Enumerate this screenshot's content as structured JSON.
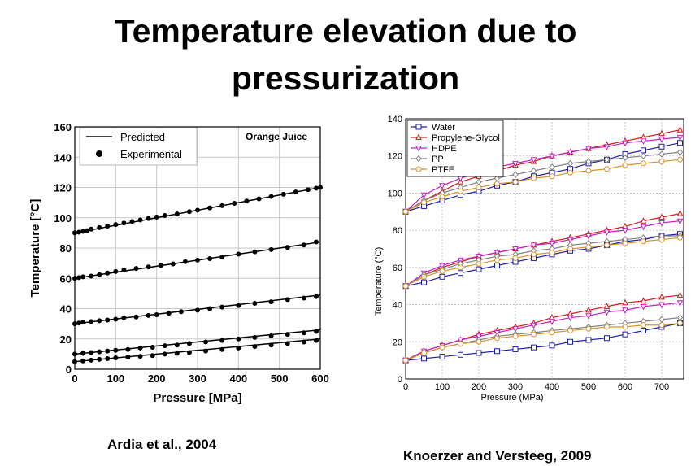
{
  "slide": {
    "title_line1": "Temperature elevation due to",
    "title_line2": "pressurization",
    "citation_left": "Ardia et al., 2004",
    "citation_right": "Knoerzer and Versteeg, 2009"
  },
  "chart_data": [
    {
      "type": "scatter",
      "title": "",
      "annotation": "Orange Juice",
      "xlabel": "Pressure [MPa]",
      "ylabel": "Temperature [°C]",
      "xlim": [
        0,
        600
      ],
      "ylim": [
        0,
        160
      ],
      "xticks": [
        0,
        100,
        200,
        300,
        400,
        500,
        600
      ],
      "yticks": [
        0,
        20,
        40,
        60,
        80,
        100,
        120,
        140,
        160
      ],
      "grid": true,
      "legend_position": "top-left",
      "legend": [
        {
          "label": "Predicted",
          "marker": "line"
        },
        {
          "label": "Experimental",
          "marker": "dot"
        }
      ],
      "color": "#000000",
      "series": [
        {
          "x": [
            0,
            600
          ],
          "predicted": [
            90,
            120
          ],
          "x_exp": [
            0,
            10,
            20,
            30,
            40,
            60,
            80,
            100,
            120,
            140,
            160,
            180,
            200,
            220,
            250,
            280,
            300,
            330,
            360,
            390,
            420,
            450,
            480,
            510,
            540,
            570,
            590,
            600
          ],
          "experimental": [
            90,
            90.5,
            91,
            91.5,
            92.5,
            93.5,
            94.5,
            95.5,
            96.5,
            97.5,
            98.5,
            99.5,
            100.5,
            101.5,
            102.5,
            104,
            105,
            106.5,
            108,
            109.5,
            111,
            112.5,
            114,
            115.5,
            117,
            118.5,
            119.5,
            120
          ]
        },
        {
          "x": [
            0,
            600
          ],
          "predicted": [
            60,
            84
          ],
          "x_exp": [
            0,
            10,
            20,
            40,
            60,
            80,
            100,
            120,
            150,
            180,
            210,
            240,
            270,
            300,
            330,
            360,
            400,
            440,
            480,
            520,
            560,
            590
          ],
          "experimental": [
            60,
            60.5,
            61,
            61.5,
            62.5,
            63.5,
            64.5,
            65.5,
            66.5,
            67.5,
            68.5,
            69.5,
            71,
            72,
            73,
            74,
            76,
            77.5,
            79,
            80.5,
            82,
            84
          ]
        },
        {
          "x": [
            0,
            600
          ],
          "predicted": [
            30,
            49
          ],
          "x_exp": [
            0,
            10,
            20,
            40,
            60,
            80,
            100,
            120,
            150,
            180,
            200,
            230,
            260,
            300,
            330,
            360,
            400,
            440,
            480,
            520,
            560,
            590
          ],
          "experimental": [
            30,
            30.5,
            31,
            31.5,
            32,
            32.5,
            33,
            34,
            34.5,
            35.5,
            36,
            37,
            38,
            39,
            40,
            41,
            42,
            43.5,
            44.5,
            46,
            47,
            48
          ]
        },
        {
          "x": [
            0,
            600
          ],
          "predicted": [
            10,
            26
          ],
          "x_exp": [
            0,
            20,
            40,
            60,
            80,
            100,
            130,
            160,
            190,
            220,
            250,
            280,
            320,
            360,
            400,
            440,
            480,
            520,
            560,
            590
          ],
          "experimental": [
            10,
            10.5,
            11,
            11.5,
            12,
            12.5,
            13,
            14,
            14.5,
            15.5,
            16,
            17,
            18,
            19,
            20,
            21,
            22,
            23,
            24,
            25
          ]
        },
        {
          "x": [
            0,
            600
          ],
          "predicted": [
            5,
            20
          ],
          "x_exp": [
            0,
            20,
            40,
            60,
            80,
            100,
            130,
            160,
            190,
            220,
            250,
            280,
            320,
            360,
            400,
            440,
            480,
            520,
            560,
            590
          ],
          "experimental": [
            5,
            5.5,
            6,
            6.5,
            7,
            7.5,
            8,
            8.5,
            9,
            10,
            10.5,
            11,
            12,
            13,
            14,
            15,
            16,
            17,
            18,
            19
          ]
        }
      ]
    },
    {
      "type": "line",
      "title": "",
      "xlabel": "Pressure (MPa)",
      "ylabel": "Temperature (°C)",
      "xlim": [
        0,
        760
      ],
      "ylim": [
        0,
        140
      ],
      "xticks": [
        0,
        100,
        200,
        300,
        400,
        500,
        600,
        700
      ],
      "yticks": [
        0,
        20,
        40,
        60,
        80,
        100,
        120,
        140
      ],
      "grid": true,
      "legend_position": "top-left",
      "x": [
        0,
        50,
        100,
        150,
        200,
        250,
        300,
        350,
        400,
        450,
        500,
        550,
        600,
        650,
        700,
        750
      ],
      "series": [
        {
          "name": "Water",
          "color": "#1f1fa8",
          "marker": "square",
          "groups": [
            [
              90,
              93,
              96,
              99,
              101,
              104,
              106,
              109,
              111,
              113,
              116,
              118,
              121,
              123,
              125,
              127
            ],
            [
              50,
              52,
              55,
              57,
              59,
              61,
              63,
              65,
              67,
              69,
              70,
              72,
              74,
              75,
              77,
              78
            ],
            [
              10,
              11,
              12,
              13,
              14,
              15,
              16,
              17,
              18,
              20,
              21,
              22,
              24,
              26,
              28,
              30
            ]
          ]
        },
        {
          "name": "Propylene-Glycol",
          "color": "#d01c1c",
          "marker": "triangle-up",
          "groups": [
            [
              90,
              96,
              101,
              106,
              109,
              112,
              115,
              117,
              120,
              122,
              124,
              126,
              128,
              130,
              132,
              134
            ],
            [
              50,
              56,
              60,
              63,
              66,
              68,
              70,
              72,
              74,
              76,
              78,
              80,
              82,
              85,
              87,
              89
            ],
            [
              10,
              15,
              18,
              21,
              24,
              26,
              28,
              30,
              33,
              35,
              37,
              39,
              41,
              42,
              44,
              45
            ]
          ]
        },
        {
          "name": "HDPE",
          "color": "#c21fc2",
          "marker": "triangle-down",
          "groups": [
            [
              90,
              99,
              104,
              108,
              111,
              114,
              116,
              118,
              120,
              122,
              124,
              125,
              127,
              128,
              129,
              130
            ],
            [
              50,
              57,
              61,
              64,
              66,
              68,
              70,
              72,
              73,
              75,
              77,
              79,
              80,
              82,
              84,
              85
            ],
            [
              10,
              15,
              18,
              21,
              23,
              25,
              27,
              29,
              31,
              33,
              34,
              36,
              37,
              39,
              40,
              41
            ]
          ]
        },
        {
          "name": "PP",
          "color": "#808080",
          "marker": "diamond",
          "groups": [
            [
              90,
              96,
              100,
              103,
              106,
              108,
              110,
              112,
              114,
              116,
              117,
              118,
              119,
              120,
              121,
              122
            ],
            [
              50,
              56,
              59,
              62,
              64,
              66,
              67,
              69,
              70,
              72,
              73,
              74,
              75,
              76,
              77,
              77
            ],
            [
              10,
              14,
              17,
              19,
              21,
              23,
              24,
              25,
              26,
              27,
              28,
              29,
              30,
              31,
              32,
              33
            ]
          ]
        },
        {
          "name": "PTFE",
          "color": "#d9922a",
          "marker": "circle",
          "groups": [
            [
              90,
              95,
              98,
              101,
              103,
              105,
              106,
              108,
              109,
              111,
              112,
              113,
              115,
              116,
              117,
              118
            ],
            [
              50,
              55,
              58,
              60,
              62,
              64,
              65,
              67,
              68,
              70,
              71,
              72,
              73,
              74,
              75,
              76
            ],
            [
              10,
              14,
              17,
              19,
              20,
              22,
              23,
              24,
              25,
              26,
              27,
              28,
              28,
              29,
              29,
              30
            ]
          ]
        }
      ]
    }
  ]
}
